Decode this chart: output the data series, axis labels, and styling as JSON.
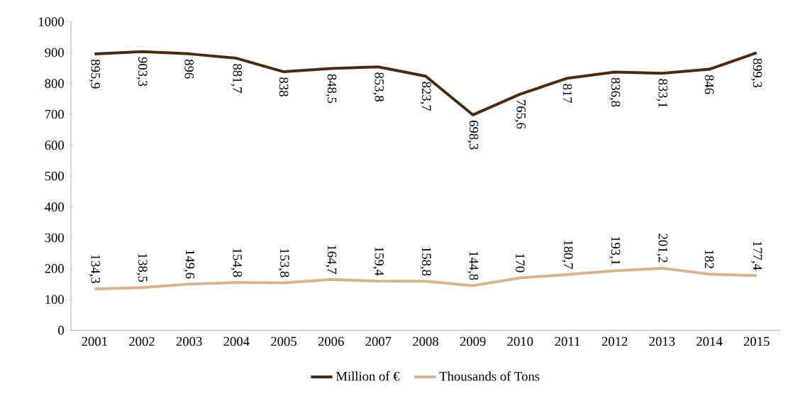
{
  "chart_data": {
    "type": "line",
    "categories": [
      "2001",
      "2002",
      "2003",
      "2004",
      "2005",
      "2006",
      "2007",
      "2008",
      "2009",
      "2010",
      "2011",
      "2012",
      "2013",
      "2014",
      "2015"
    ],
    "series": [
      {
        "name": "Million of €",
        "color": "#4a2b12",
        "values": [
          895.9,
          903.3,
          896,
          881.7,
          838,
          848.5,
          853.8,
          823.7,
          698.3,
          765.6,
          817,
          836.8,
          833.1,
          846,
          899.3
        ],
        "value_labels": [
          "895,9",
          "903,3",
          "896",
          "881,7",
          "838",
          "848,5",
          "853,8",
          "823,7",
          "698,3",
          "765,6",
          "817",
          "836,8",
          "833,1",
          "846",
          "899,3"
        ]
      },
      {
        "name": "Thousands of Tons",
        "color": "#d8b48e",
        "values": [
          134.3,
          138.5,
          149.6,
          154.8,
          153.8,
          164.7,
          159.4,
          158.8,
          144.8,
          170,
          180.7,
          193.1,
          201.2,
          182,
          177.4
        ],
        "value_labels": [
          "134,3",
          "138,5",
          "149,6",
          "154,8",
          "153,8",
          "164,7",
          "159,4",
          "158,8",
          "144,8",
          "170",
          "180,7",
          "193,1",
          "201,2",
          "182",
          "177,4"
        ]
      }
    ],
    "ylim": [
      0,
      1000
    ],
    "yticks": [
      0,
      100,
      200,
      300,
      400,
      500,
      600,
      700,
      800,
      900,
      1000
    ],
    "grid": false,
    "legend": "bottom"
  }
}
